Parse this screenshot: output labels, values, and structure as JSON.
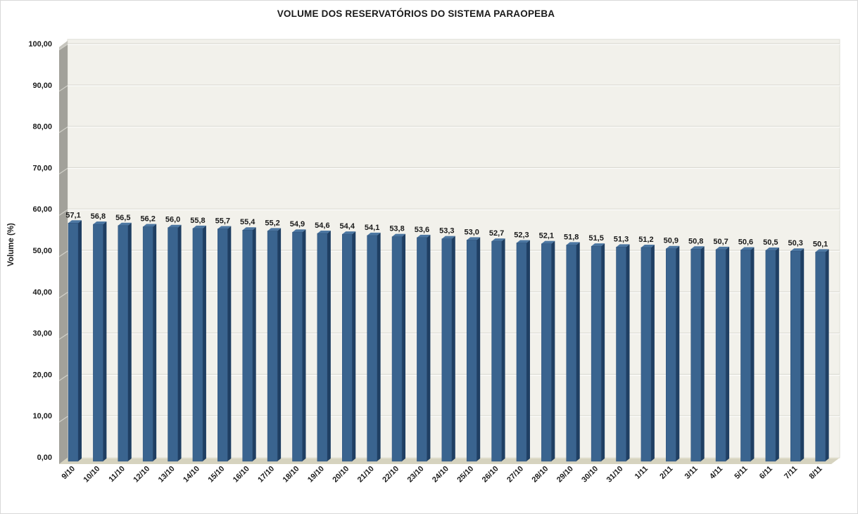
{
  "page": {
    "background": "#ffffff",
    "border_color": "#d8d8d8"
  },
  "chart_data": {
    "type": "bar",
    "style": "3d-column",
    "title": "VOLUME DOS RESERVATÓRIOS DO SISTEMA PARAOPEBA",
    "xlabel": "",
    "ylabel": "Volume (%)",
    "ylim": [
      0,
      100
    ],
    "y_tick_step": 10,
    "decimal_separator": ",",
    "grid": true,
    "legend": false,
    "categories": [
      "9/10",
      "10/10",
      "11/10",
      "12/10",
      "13/10",
      "14/10",
      "15/10",
      "16/10",
      "17/10",
      "18/10",
      "19/10",
      "20/10",
      "21/10",
      "22/10",
      "23/10",
      "24/10",
      "25/10",
      "26/10",
      "27/10",
      "28/10",
      "29/10",
      "30/10",
      "31/10",
      "1/11",
      "2/11",
      "3/11",
      "4/11",
      "5/11",
      "6/11",
      "7/11",
      "8/11"
    ],
    "values": [
      57.1,
      56.8,
      56.5,
      56.2,
      56.0,
      55.8,
      55.7,
      55.4,
      55.2,
      54.9,
      54.6,
      54.4,
      54.1,
      53.8,
      53.6,
      53.3,
      53.0,
      52.7,
      52.3,
      52.1,
      51.8,
      51.5,
      51.3,
      51.2,
      50.9,
      50.8,
      50.7,
      50.6,
      50.5,
      50.3,
      50.1
    ],
    "colors": {
      "bar_front": "#3a648f",
      "bar_side": "#1f3f63",
      "bar_top": "#4c77a2",
      "bar_outline": "#2d4f78",
      "plot_bg": "#f2f1eb",
      "plot_border": "#deddd6",
      "wall": "#a2a19a",
      "wall_cap": "#c6c5be",
      "wall_tick": "#d2d1ca",
      "floor": "#d6d3bf",
      "floor_highlight": "#e6e3d2",
      "gridline": "#dcdbd4",
      "gridline_highlight": "#ffffff",
      "text": "#1a1a1a"
    }
  }
}
